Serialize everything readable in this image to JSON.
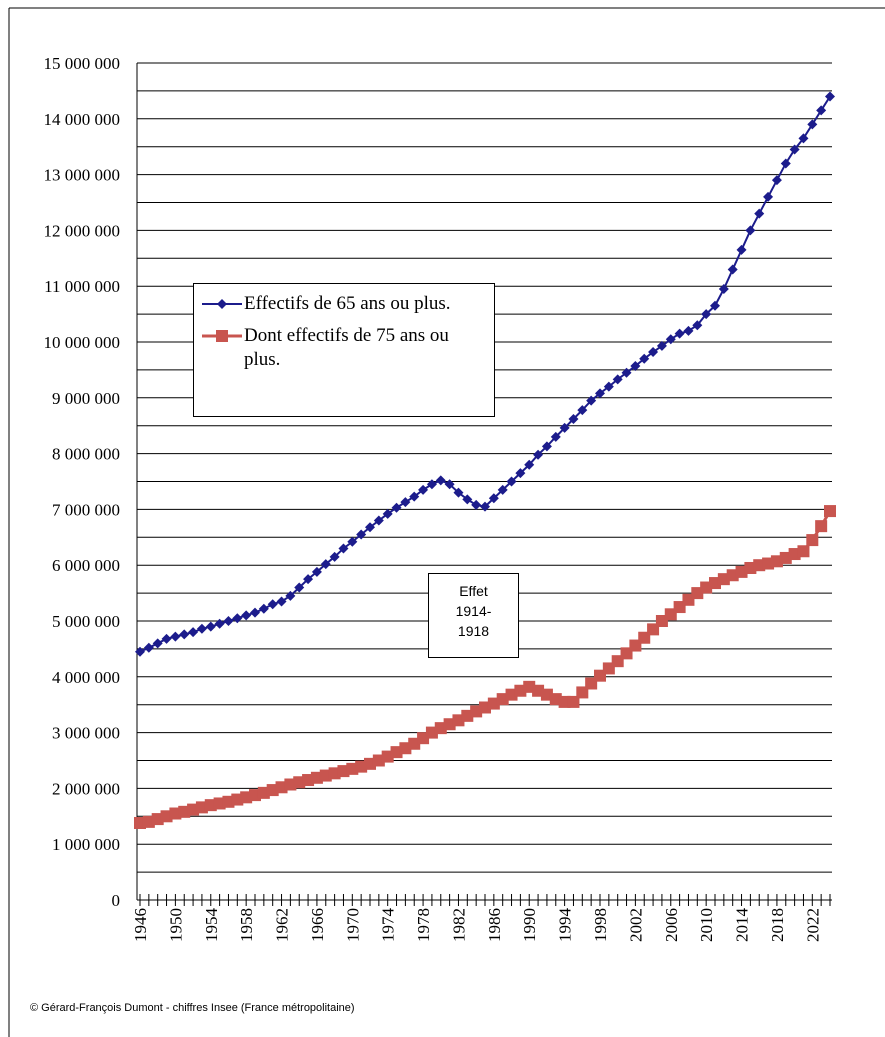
{
  "chart_data": {
    "type": "line",
    "categories": [
      "1946",
      null,
      null,
      null,
      "1950",
      null,
      null,
      null,
      "1954",
      null,
      null,
      null,
      "1958",
      null,
      null,
      null,
      "1962",
      null,
      null,
      null,
      "1966",
      null,
      null,
      null,
      "1970",
      null,
      null,
      null,
      "1974",
      null,
      null,
      null,
      "1978",
      null,
      null,
      null,
      "1982",
      null,
      null,
      null,
      "1986",
      null,
      null,
      null,
      "1990",
      null,
      null,
      null,
      "1994",
      null,
      null,
      null,
      "1998",
      null,
      null,
      null,
      "2002",
      null,
      null,
      null,
      "2006",
      null,
      null,
      null,
      "2010",
      null,
      null,
      null,
      "2014",
      null,
      null,
      null,
      "2018",
      null,
      null,
      null,
      "2022",
      null,
      null
    ],
    "series": [
      {
        "name": "Effectifs de 65 ans ou plus.",
        "color": "#1c1c8c",
        "marker": "diamond",
        "values": [
          4450000,
          4520000,
          4600000,
          4680000,
          4720000,
          4760000,
          4800000,
          4860000,
          4900000,
          4950000,
          5000000,
          5050000,
          5100000,
          5150000,
          5220000,
          5300000,
          5350000,
          5450000,
          5600000,
          5750000,
          5880000,
          6020000,
          6150000,
          6300000,
          6420000,
          6550000,
          6680000,
          6800000,
          6920000,
          7030000,
          7130000,
          7230000,
          7350000,
          7450000,
          7520000,
          7450000,
          7300000,
          7180000,
          7080000,
          7050000,
          7200000,
          7350000,
          7500000,
          7650000,
          7800000,
          7980000,
          8130000,
          8300000,
          8460000,
          8620000,
          8780000,
          8950000,
          9080000,
          9200000,
          9330000,
          9450000,
          9570000,
          9700000,
          9820000,
          9930000,
          10050000,
          10150000,
          10200000,
          10300000,
          10500000,
          10650000,
          10950000,
          11300000,
          11650000,
          12000000,
          12300000,
          12600000,
          12900000,
          13200000,
          13450000,
          13650000,
          13900000,
          14150000,
          14400000
        ]
      },
      {
        "name": "Dont effectifs de 75 ans ou plus.",
        "color": "#c8554f",
        "marker": "square",
        "values": [
          1380000,
          1400000,
          1450000,
          1500000,
          1550000,
          1580000,
          1620000,
          1660000,
          1700000,
          1730000,
          1760000,
          1800000,
          1840000,
          1880000,
          1920000,
          1970000,
          2020000,
          2070000,
          2110000,
          2150000,
          2190000,
          2230000,
          2270000,
          2310000,
          2350000,
          2390000,
          2440000,
          2500000,
          2570000,
          2650000,
          2720000,
          2800000,
          2900000,
          3000000,
          3080000,
          3150000,
          3220000,
          3300000,
          3380000,
          3450000,
          3520000,
          3600000,
          3680000,
          3750000,
          3820000,
          3750000,
          3680000,
          3600000,
          3550000,
          3550000,
          3720000,
          3880000,
          4020000,
          4150000,
          4280000,
          4420000,
          4560000,
          4700000,
          4850000,
          5000000,
          5120000,
          5250000,
          5380000,
          5500000,
          5600000,
          5680000,
          5750000,
          5820000,
          5880000,
          5950000,
          6000000,
          6030000,
          6070000,
          6130000,
          6200000,
          6250000,
          6450000,
          6700000,
          6970000
        ]
      }
    ],
    "ylim": [
      0,
      15000000
    ],
    "yticks": [
      0,
      {
        "value": 1000000,
        "label": "1 000 000"
      },
      {
        "value": 2000000,
        "label": "2 000 000"
      },
      {
        "value": 3000000,
        "label": "3 000 000"
      },
      {
        "value": 4000000,
        "label": "4 000 000"
      },
      {
        "value": 5000000,
        "label": "5 000 000"
      },
      {
        "value": 6000000,
        "label": "6 000 000"
      },
      {
        "value": 7000000,
        "label": "7 000 000"
      },
      {
        "value": 8000000,
        "label": "8 000 000"
      },
      {
        "value": 9000000,
        "label": "9 000 000"
      },
      {
        "value": 10000000,
        "label": "10 000 000"
      },
      {
        "value": 11000000,
        "label": "11 000 000"
      },
      {
        "value": 12000000,
        "label": "12 000 000"
      },
      {
        "value": 13000000,
        "label": "13 000 000"
      },
      {
        "value": 14000000,
        "label": "14 000 000"
      },
      {
        "value": 15000000,
        "label": "15 000 000"
      }
    ],
    "grid": true,
    "annotation": [
      "Effet",
      "1914-",
      "1918"
    ],
    "source": "© Gérard-François Dumont - chiffres Insee (France métropolitaine)"
  }
}
